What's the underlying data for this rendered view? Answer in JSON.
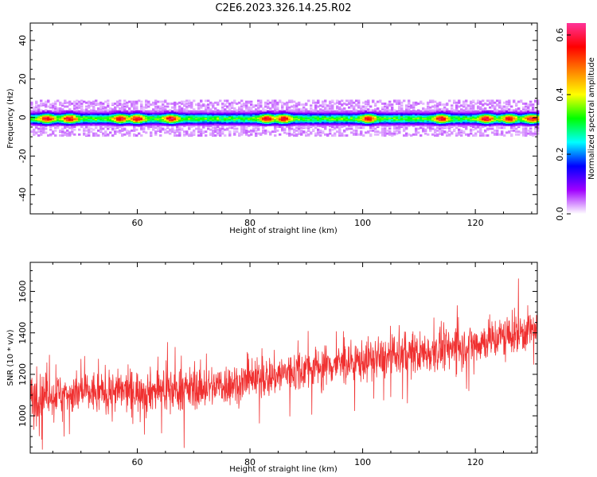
{
  "title": "C2E6.2023.326.14.25.R02",
  "chart_data": [
    {
      "type": "heatmap",
      "xlabel": "Height of straight line (km)",
      "ylabel": "Frequency (Hz)",
      "xlim": [
        41,
        131
      ],
      "ylim": [
        -50,
        49
      ],
      "xticks": [
        60,
        80,
        100,
        120
      ],
      "yticks": [
        -40,
        -20,
        0,
        20,
        40
      ],
      "colorbar": {
        "label": "Normalized spectral amplitude",
        "range": [
          0.0,
          0.64
        ],
        "ticks": [
          "0.0",
          "0.2",
          "0.4",
          "0.6"
        ],
        "colormap": [
          "#ffffff",
          "#a000ff",
          "#0000ff",
          "#00ffff",
          "#00ff00",
          "#ffff00",
          "#ff8000",
          "#ff0000",
          "#ff3399"
        ]
      },
      "band": {
        "center_hz": 0,
        "halfwidth_hz": 3,
        "peak_amplitude": 0.6,
        "hot_spots_km": [
          44,
          48,
          57,
          60,
          66,
          83,
          86,
          101,
          114,
          122,
          126,
          130
        ]
      }
    },
    {
      "type": "line",
      "xlabel": "Height of straight line (km)",
      "ylabel": "SNR (10 * v/v)",
      "xlim": [
        41,
        131
      ],
      "ylim": [
        820,
        1740
      ],
      "xticks": [
        60,
        80,
        100,
        120
      ],
      "yticks": [
        1000,
        1200,
        1400,
        1600
      ],
      "series": [
        {
          "color": "#f03030",
          "trend_x": [
            41,
            60,
            70,
            80,
            90,
            100,
            110,
            120,
            131
          ],
          "trend_y": [
            1100,
            1120,
            1130,
            1165,
            1230,
            1265,
            1300,
            1350,
            1420
          ],
          "noise_sd": 70
        }
      ]
    }
  ]
}
